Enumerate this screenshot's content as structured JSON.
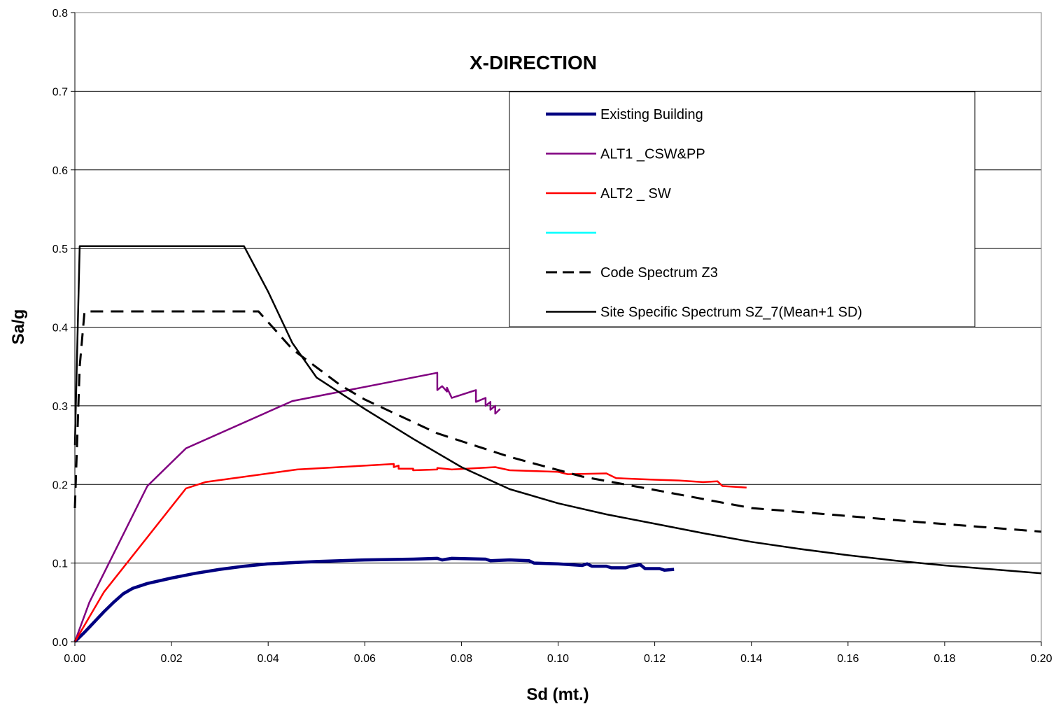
{
  "chart_data": {
    "type": "line",
    "title": "X-DIRECTION",
    "xlabel": "Sd (mt.)",
    "ylabel": "Sa/g",
    "xlim": [
      0,
      0.2
    ],
    "ylim": [
      0,
      0.8
    ],
    "x_ticks": [
      "0.00",
      "0.02",
      "0.04",
      "0.06",
      "0.08",
      "0.10",
      "0.12",
      "0.14",
      "0.16",
      "0.18",
      "0.20"
    ],
    "y_ticks": [
      "0.0",
      "0.1",
      "0.2",
      "0.3",
      "0.4",
      "0.5",
      "0.6",
      "0.7",
      "0.8"
    ],
    "grid": "horizontal",
    "legend_position": "upper-right",
    "series": [
      {
        "name": "Existing Building",
        "color": "#000080",
        "style": "solid-thick",
        "points": [
          [
            0,
            0
          ],
          [
            0.002,
            0.012
          ],
          [
            0.004,
            0.025
          ],
          [
            0.006,
            0.038
          ],
          [
            0.008,
            0.05
          ],
          [
            0.01,
            0.061
          ],
          [
            0.012,
            0.068
          ],
          [
            0.015,
            0.074
          ],
          [
            0.02,
            0.081
          ],
          [
            0.025,
            0.087
          ],
          [
            0.03,
            0.092
          ],
          [
            0.035,
            0.096
          ],
          [
            0.04,
            0.099
          ],
          [
            0.05,
            0.102
          ],
          [
            0.06,
            0.104
          ],
          [
            0.07,
            0.105
          ],
          [
            0.075,
            0.106
          ],
          [
            0.076,
            0.104
          ],
          [
            0.078,
            0.106
          ],
          [
            0.085,
            0.105
          ],
          [
            0.086,
            0.103
          ],
          [
            0.09,
            0.104
          ],
          [
            0.094,
            0.103
          ],
          [
            0.095,
            0.1
          ],
          [
            0.1,
            0.099
          ],
          [
            0.105,
            0.097
          ],
          [
            0.106,
            0.099
          ],
          [
            0.107,
            0.096
          ],
          [
            0.11,
            0.096
          ],
          [
            0.111,
            0.094
          ],
          [
            0.114,
            0.094
          ],
          [
            0.115,
            0.096
          ],
          [
            0.117,
            0.098
          ],
          [
            0.118,
            0.093
          ],
          [
            0.121,
            0.093
          ],
          [
            0.122,
            0.091
          ],
          [
            0.124,
            0.092
          ]
        ]
      },
      {
        "name": "ALT1 _CSW&PP",
        "color": "#800080",
        "style": "solid",
        "points": [
          [
            0,
            0
          ],
          [
            0.003,
            0.05
          ],
          [
            0.015,
            0.198
          ],
          [
            0.023,
            0.246
          ],
          [
            0.045,
            0.306
          ],
          [
            0.075,
            0.342
          ],
          [
            0.075,
            0.32
          ],
          [
            0.076,
            0.325
          ],
          [
            0.077,
            0.318
          ],
          [
            0.077,
            0.323
          ],
          [
            0.078,
            0.31
          ],
          [
            0.083,
            0.32
          ],
          [
            0.083,
            0.305
          ],
          [
            0.085,
            0.31
          ],
          [
            0.085,
            0.3
          ],
          [
            0.086,
            0.305
          ],
          [
            0.086,
            0.295
          ],
          [
            0.087,
            0.3
          ],
          [
            0.087,
            0.29
          ],
          [
            0.088,
            0.296
          ]
        ]
      },
      {
        "name": "ALT2 _ SW",
        "color": "#ff0000",
        "style": "solid",
        "points": [
          [
            0,
            0
          ],
          [
            0.006,
            0.063
          ],
          [
            0.023,
            0.195
          ],
          [
            0.027,
            0.203
          ],
          [
            0.046,
            0.219
          ],
          [
            0.066,
            0.226
          ],
          [
            0.066,
            0.222
          ],
          [
            0.067,
            0.224
          ],
          [
            0.067,
            0.22
          ],
          [
            0.07,
            0.22
          ],
          [
            0.07,
            0.218
          ],
          [
            0.075,
            0.219
          ],
          [
            0.075,
            0.221
          ],
          [
            0.078,
            0.219
          ],
          [
            0.087,
            0.222
          ],
          [
            0.09,
            0.218
          ],
          [
            0.095,
            0.217
          ],
          [
            0.1,
            0.216
          ],
          [
            0.102,
            0.213
          ],
          [
            0.11,
            0.214
          ],
          [
            0.112,
            0.208
          ],
          [
            0.12,
            0.206
          ],
          [
            0.125,
            0.205
          ],
          [
            0.13,
            0.203
          ],
          [
            0.133,
            0.204
          ],
          [
            0.134,
            0.198
          ],
          [
            0.139,
            0.196
          ]
        ]
      },
      {
        "name": "",
        "color": "#00ffff",
        "style": "solid",
        "points": []
      },
      {
        "name": "Code Spectrum Z3",
        "color": "#000000",
        "style": "dashed",
        "points": [
          [
            0,
            0.17
          ],
          [
            0.001,
            0.35
          ],
          [
            0.002,
            0.42
          ],
          [
            0.038,
            0.42
          ],
          [
            0.045,
            0.372
          ],
          [
            0.055,
            0.326
          ],
          [
            0.06,
            0.308
          ],
          [
            0.075,
            0.265
          ],
          [
            0.09,
            0.235
          ],
          [
            0.105,
            0.21
          ],
          [
            0.12,
            0.193
          ],
          [
            0.14,
            0.17
          ],
          [
            0.15,
            0.165
          ],
          [
            0.175,
            0.152
          ],
          [
            0.2,
            0.14
          ]
        ]
      },
      {
        "name": "Site Specific Spectrum SZ_7(Mean+1 SD)",
        "color": "#000000",
        "style": "solid",
        "points": [
          [
            0,
            0.25
          ],
          [
            0.001,
            0.503
          ],
          [
            0.035,
            0.503
          ],
          [
            0.04,
            0.445
          ],
          [
            0.045,
            0.38
          ],
          [
            0.05,
            0.336
          ],
          [
            0.06,
            0.296
          ],
          [
            0.07,
            0.258
          ],
          [
            0.08,
            0.222
          ],
          [
            0.09,
            0.194
          ],
          [
            0.1,
            0.176
          ],
          [
            0.11,
            0.162
          ],
          [
            0.12,
            0.15
          ],
          [
            0.13,
            0.138
          ],
          [
            0.14,
            0.127
          ],
          [
            0.15,
            0.118
          ],
          [
            0.16,
            0.11
          ],
          [
            0.17,
            0.103
          ],
          [
            0.18,
            0.097
          ],
          [
            0.19,
            0.092
          ],
          [
            0.2,
            0.087
          ]
        ]
      }
    ]
  }
}
